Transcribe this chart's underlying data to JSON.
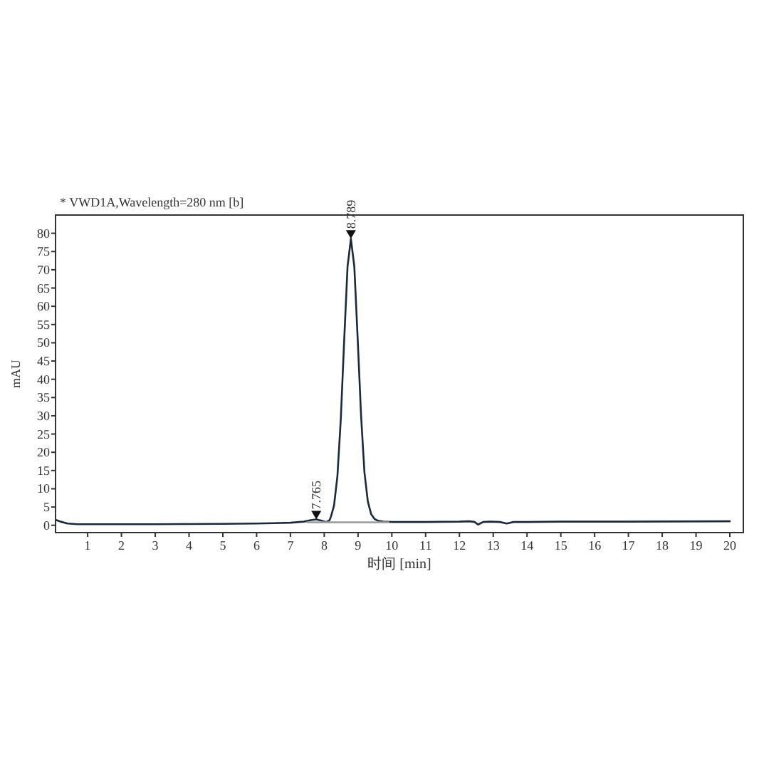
{
  "chart_data": {
    "type": "line",
    "title": "* VWD1A,Wavelength=280 nm [b]",
    "xlabel": "时间 [min]",
    "ylabel": "mAU",
    "xlim": [
      0.05,
      20.4
    ],
    "ylim": [
      -2,
      85
    ],
    "xticks": [
      1,
      2,
      3,
      4,
      5,
      6,
      7,
      8,
      9,
      10,
      11,
      12,
      13,
      14,
      15,
      16,
      17,
      18,
      19,
      20
    ],
    "yticks": [
      0,
      5,
      10,
      15,
      20,
      25,
      30,
      35,
      40,
      45,
      50,
      55,
      60,
      65,
      70,
      75,
      80
    ],
    "series": [
      {
        "color": "#1a2a3a",
        "x": [
          0.05,
          0.2,
          0.4,
          0.7,
          1,
          2,
          3,
          4,
          5,
          6,
          6.5,
          7,
          7.4,
          7.6,
          7.765,
          7.9,
          8.05,
          8.15,
          8.19,
          8.29,
          8.39,
          8.49,
          8.59,
          8.69,
          8.789,
          8.89,
          8.99,
          9.09,
          9.19,
          9.29,
          9.39,
          9.49,
          9.6,
          9.75,
          10,
          11,
          12,
          12.3,
          12.45,
          12.55,
          12.7,
          12.9,
          13.2,
          13.4,
          13.6,
          14,
          15,
          17,
          20
        ],
        "values": [
          1.5,
          1.0,
          0.5,
          0.3,
          0.3,
          0.3,
          0.3,
          0.35,
          0.4,
          0.5,
          0.6,
          0.7,
          1.0,
          1.4,
          1.6,
          1.3,
          0.9,
          1.3,
          2.1,
          5.4,
          13.5,
          29.1,
          50.6,
          70.9,
          78.5,
          70.9,
          51,
          30,
          14.5,
          6.5,
          3,
          1.7,
          1.2,
          1.0,
          0.9,
          0.9,
          1.0,
          1.1,
          0.9,
          0.2,
          0.9,
          1.0,
          0.9,
          0.5,
          0.9,
          0.9,
          1.0,
          1.0,
          1.1
        ]
      },
      {
        "color": "#a0a0a0",
        "x": [
          7.5,
          9.9
        ],
        "values": [
          0.8,
          0.8
        ]
      }
    ],
    "annotations": [
      {
        "text": "7.765",
        "x": 7.765,
        "y": 1.6
      },
      {
        "text": "8.789",
        "x": 8.789,
        "y": 78.5
      }
    ]
  }
}
